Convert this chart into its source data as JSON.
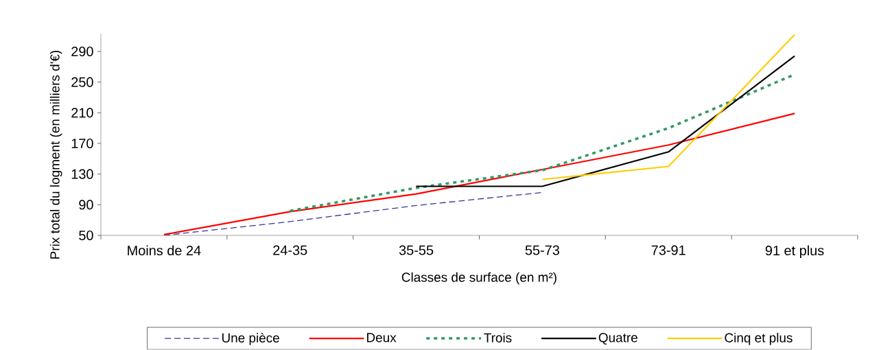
{
  "chart_data": {
    "type": "line",
    "xlabel": "Classes de surface (en m²)",
    "ylabel": "Prix total du logment (en milliers d'€)",
    "categories": [
      "Moins de 24",
      "24-35",
      "35-55",
      "55-73",
      "73-91",
      "91 et plus"
    ],
    "ylim": [
      50,
      313
    ],
    "yticks": [
      50,
      90,
      130,
      170,
      210,
      250,
      290
    ],
    "grid": false,
    "legend": "bottom",
    "series": [
      {
        "name": "Une pièce",
        "color": "#333399",
        "line_style": "dashed",
        "values": [
          50,
          68,
          89,
          106,
          null,
          null
        ]
      },
      {
        "name": "Deux",
        "color": "#ff0000",
        "line_style": "solid",
        "values": [
          51,
          81,
          104,
          136,
          168,
          209
        ]
      },
      {
        "name": "Trois",
        "color": "#339966",
        "line_style": "dotted",
        "values": [
          null,
          82,
          112,
          135,
          190,
          260
        ]
      },
      {
        "name": "Quatre",
        "color": "#000000",
        "line_style": "solid",
        "values": [
          null,
          null,
          114,
          114,
          159,
          284
        ]
      },
      {
        "name": "Cinq et plus",
        "color": "#ffcc00",
        "line_style": "solid",
        "values": [
          null,
          null,
          null,
          123,
          140,
          312
        ]
      }
    ]
  }
}
